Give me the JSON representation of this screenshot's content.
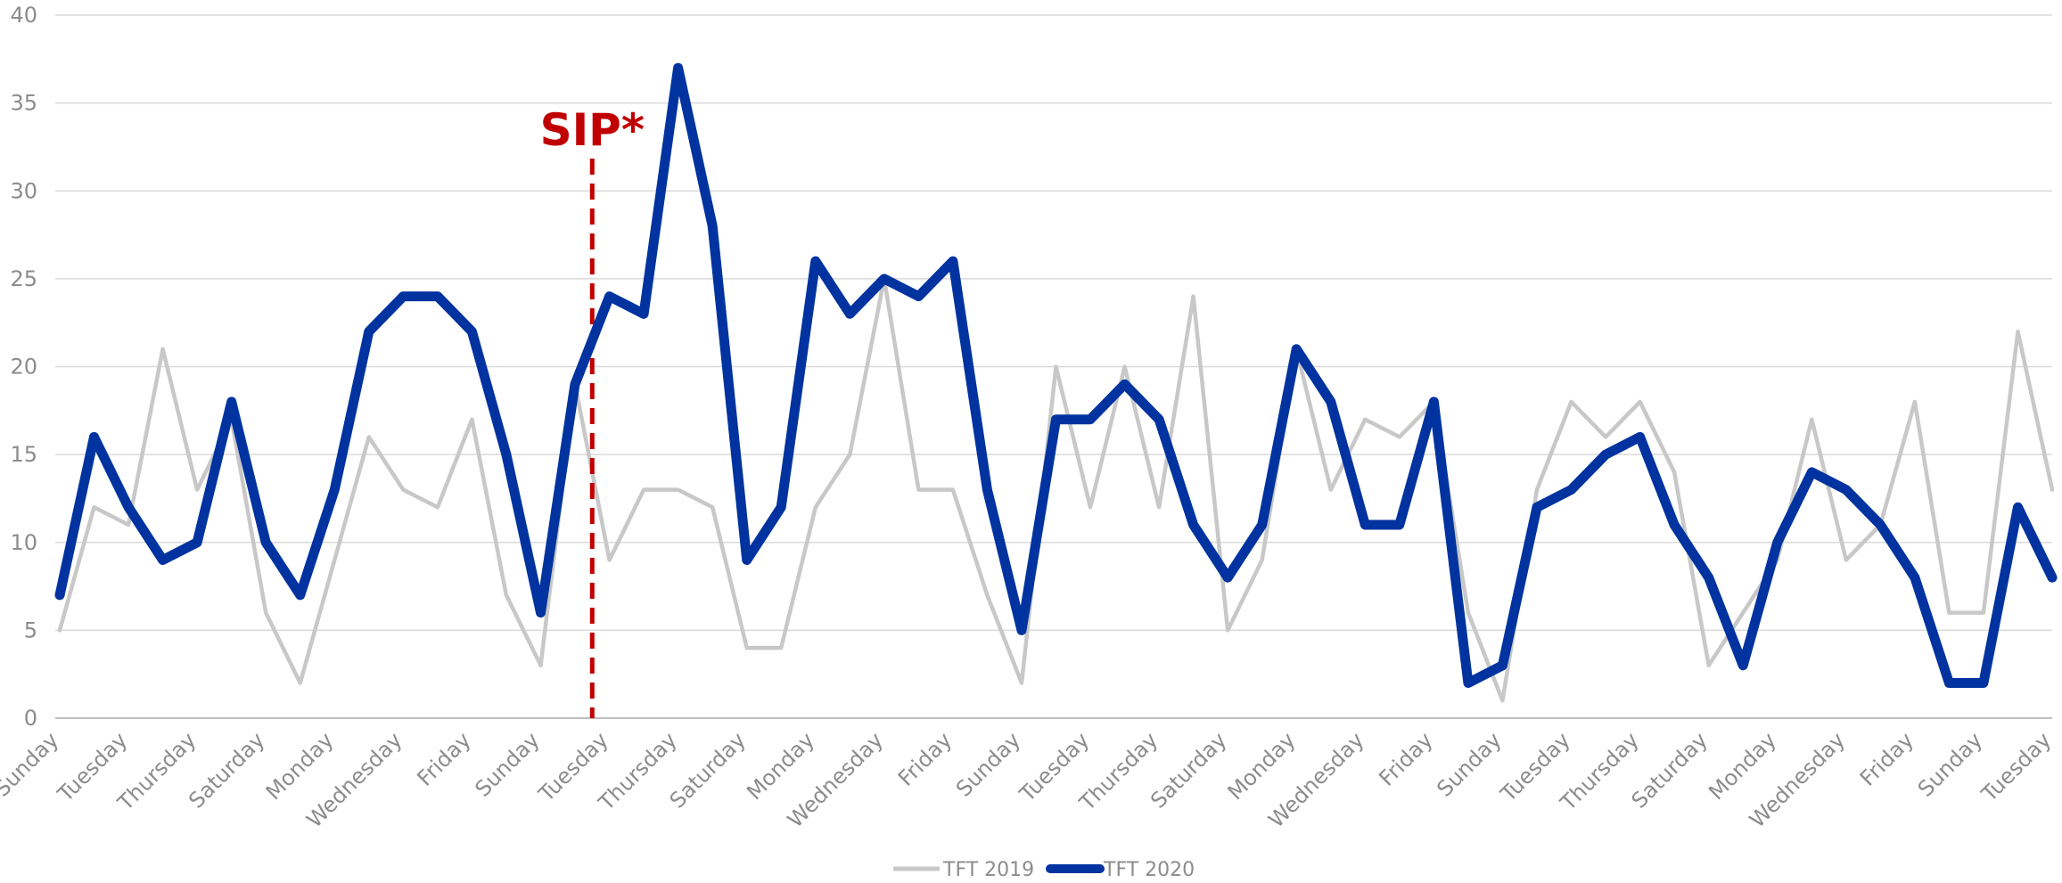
{
  "chart_data": {
    "type": "line",
    "ylim": [
      0,
      40
    ],
    "yticks": [
      "0",
      "5",
      "10",
      "15",
      "20",
      "25",
      "30",
      "35",
      "40"
    ],
    "x_tick_labels": [
      "Sunday",
      "Tuesday",
      "Thursday",
      "Saturday",
      "Monday",
      "Wednesday",
      "Friday",
      "Sunday",
      "Tuesday",
      "Thursday",
      "Saturday",
      "Monday",
      "Wednesday",
      "Friday",
      "Sunday",
      "Tuesday",
      "Thursday",
      "Saturday",
      "Monday",
      "Wednesday",
      "Friday",
      "Sunday",
      "Tuesday",
      "Thursday",
      "Saturday",
      "Monday",
      "Wednesday",
      "Friday",
      "Sunday",
      "Tuesday"
    ],
    "grid": true,
    "legend_position": "bottom",
    "series": [
      {
        "name": "TFT 2019",
        "color": "#c8c8c8",
        "values": [
          5,
          12,
          11,
          21,
          13,
          17,
          6,
          2,
          9,
          16,
          13,
          12,
          17,
          7,
          3,
          19,
          9,
          13,
          13,
          12,
          4,
          4,
          12,
          15,
          25,
          13,
          13,
          7,
          2,
          20,
          12,
          20,
          12,
          24,
          5,
          9,
          21,
          13,
          17,
          16,
          18,
          6,
          1,
          13,
          18,
          16,
          18,
          14,
          3,
          6,
          9,
          17,
          9,
          11,
          18,
          6,
          6,
          22,
          13
        ]
      },
      {
        "name": "TFT 2020",
        "color": "#0033a0",
        "values": [
          7,
          16,
          12,
          9,
          10,
          18,
          10,
          7,
          13,
          22,
          24,
          24,
          22,
          15,
          6,
          19,
          24,
          23,
          37,
          28,
          9,
          12,
          26,
          23,
          25,
          24,
          26,
          13,
          5,
          17,
          17,
          19,
          17,
          11,
          8,
          11,
          21,
          18,
          11,
          11,
          18,
          2,
          3,
          12,
          13,
          15,
          16,
          11,
          8,
          3,
          10,
          14,
          13,
          11,
          8,
          2,
          2,
          12,
          8
        ]
      }
    ],
    "annotation": {
      "label": "SIP*",
      "x_index": 15.5,
      "color": "#c00000"
    }
  }
}
